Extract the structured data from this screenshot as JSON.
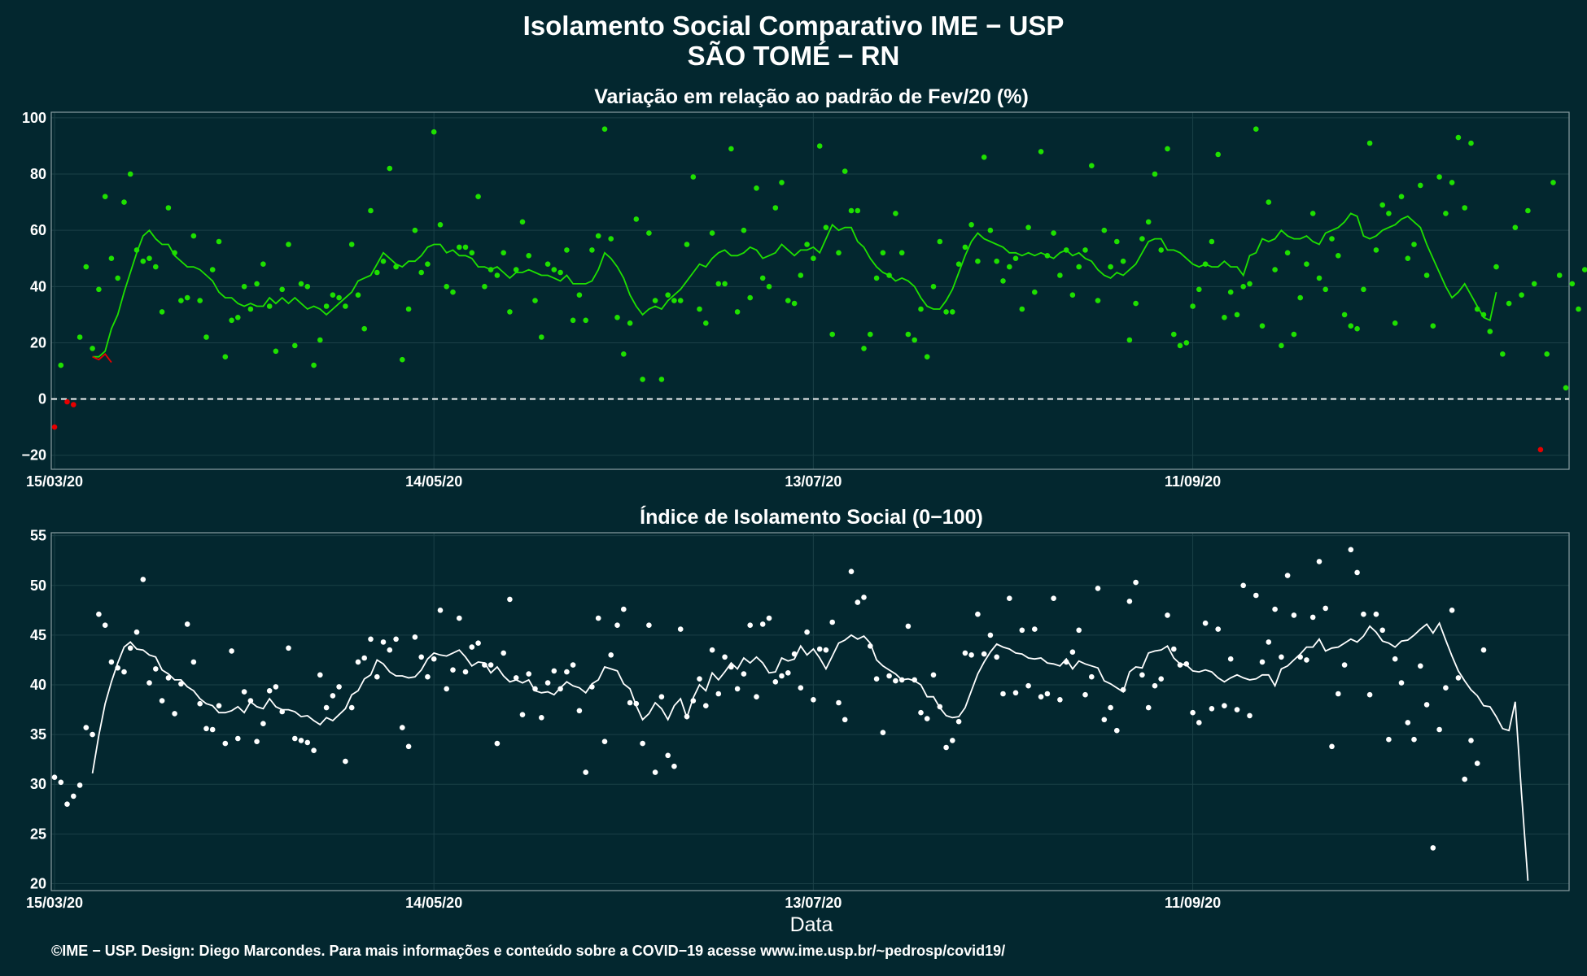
{
  "title_line1": "Isolamento Social Comparativo IME − USP",
  "title_line2": "SÃO TOMÉ − RN",
  "caption": "©IME − USP. Design: Diego Marcondes. Para mais informações e conteúdo sobre a COVID−19 acesse www.ime.usp.br/~pedrosp/covid19/",
  "colors": {
    "background": "#03272f",
    "variation_points": "#1ee000",
    "variation_negative": "#e60000",
    "index_points": "#ffffff",
    "zero_line": "#ffffff"
  },
  "chart_data": [
    {
      "type": "scatter",
      "title": "Variação em relação ao padrão de Fev/20 (%)",
      "xlabel": "",
      "ylabel": "",
      "x_ticks": [
        "15/03/20",
        "14/05/20",
        "13/07/20",
        "11/09/20"
      ],
      "x_range_days": [
        0,
        239
      ],
      "x_tick_days": [
        0,
        60,
        120,
        180
      ],
      "y_ticks": [
        -20,
        0,
        20,
        40,
        60,
        80,
        100
      ],
      "ylim": [
        -25,
        102
      ],
      "reference_line": 0,
      "grid": true,
      "series": [
        {
          "values": [
            -10,
            12,
            -1,
            -2,
            22,
            47,
            18,
            39,
            72,
            50,
            43,
            70,
            80,
            53,
            49,
            50,
            47,
            31,
            68,
            52,
            35,
            36,
            58,
            35,
            22,
            46,
            56,
            15,
            28,
            29,
            40,
            32,
            41,
            48,
            33,
            17,
            39,
            55,
            19,
            41,
            40,
            12,
            21,
            33,
            37,
            36,
            33,
            55,
            37,
            25,
            67,
            45,
            49,
            82,
            47,
            14,
            32,
            60,
            45,
            48,
            95,
            62,
            40,
            38,
            54,
            54,
            52,
            72,
            40,
            46,
            44,
            52,
            31,
            46,
            63,
            51,
            35,
            22,
            48,
            46,
            45,
            53,
            28,
            37,
            28,
            53,
            58,
            96,
            57,
            29,
            16,
            27,
            64,
            7,
            59,
            35,
            7,
            37,
            35,
            35,
            55,
            79,
            32,
            27,
            59,
            41,
            41,
            89,
            31,
            60,
            36,
            75,
            43,
            40,
            68,
            77,
            35,
            34,
            44,
            55,
            50,
            90,
            61,
            23,
            52,
            81,
            67,
            67,
            18,
            23,
            43,
            52,
            44,
            66,
            52,
            23,
            21,
            32,
            15,
            40,
            56,
            31,
            31,
            48,
            54,
            62,
            49,
            86,
            60,
            49,
            42,
            47,
            50,
            32,
            61,
            38,
            88,
            51,
            59,
            44,
            53,
            37,
            47,
            53,
            83,
            35,
            60,
            47,
            56,
            49,
            21,
            34,
            57,
            63,
            80,
            53,
            89,
            23,
            19,
            20,
            33,
            39,
            48,
            56,
            87,
            29,
            38,
            30,
            40,
            41,
            96,
            26,
            70,
            46,
            19,
            52,
            23,
            36,
            48,
            66,
            43,
            39,
            57,
            51,
            30,
            26,
            25,
            39,
            91,
            53,
            69,
            66,
            27,
            72,
            50,
            55,
            76,
            44,
            26,
            79,
            66,
            77,
            93,
            68,
            91,
            32,
            30,
            24,
            47,
            16,
            34,
            61,
            37,
            67,
            41,
            -18,
            16,
            77,
            44,
            4,
            41,
            32,
            46
          ]
        }
      ],
      "moving_average": [
        null,
        null,
        null,
        null,
        null,
        null,
        15,
        15,
        17,
        25,
        30,
        38,
        45,
        52,
        58,
        60,
        57,
        55,
        55,
        51,
        49,
        47,
        47,
        46,
        44,
        42,
        38,
        36,
        36,
        34,
        33,
        34,
        33,
        33,
        36,
        34,
        36,
        34,
        36,
        34,
        32,
        33,
        32,
        30,
        32,
        34,
        36,
        38,
        42,
        43,
        44,
        48,
        52,
        50,
        48,
        47,
        49,
        49,
        51,
        54,
        55,
        55,
        52,
        53,
        51,
        51,
        50,
        47,
        47,
        46,
        47,
        45,
        43,
        45,
        45,
        46,
        45,
        44,
        44,
        43,
        42,
        44,
        41,
        41,
        41,
        42,
        46,
        52,
        50,
        47,
        43,
        37,
        33,
        30,
        32,
        33,
        32,
        35,
        37,
        39,
        42,
        45,
        48,
        47,
        50,
        52,
        53,
        51,
        51,
        52,
        54,
        53,
        50,
        51,
        52,
        55,
        53,
        51,
        53,
        53,
        54,
        52,
        57,
        62,
        60,
        61,
        61,
        56,
        54,
        50,
        47,
        45,
        44,
        42,
        43,
        42,
        40,
        36,
        33,
        32,
        32,
        35,
        39,
        45,
        51,
        56,
        59,
        57,
        56,
        55,
        54,
        52,
        52,
        51,
        52,
        51,
        52,
        51,
        50,
        52,
        53,
        51,
        52,
        50,
        49,
        46,
        44,
        43,
        45,
        44,
        46,
        48,
        52,
        56,
        57,
        57,
        53,
        53,
        52,
        50,
        48,
        47,
        48,
        47,
        47,
        49,
        47,
        47,
        44,
        51,
        52,
        57,
        56,
        57,
        60,
        58,
        57,
        57,
        58,
        56,
        55,
        59,
        60,
        61,
        63,
        66,
        65,
        58,
        57,
        58,
        60,
        61,
        62,
        64,
        65,
        63,
        61,
        55,
        50,
        45,
        40,
        36,
        38,
        41,
        37,
        33,
        29,
        28,
        38
      ]
    },
    {
      "type": "scatter",
      "title": "Índice de Isolamento Social (0−100)",
      "xlabel": "Data",
      "ylabel": "",
      "x_ticks": [
        "15/03/20",
        "14/05/20",
        "13/07/20",
        "11/09/20"
      ],
      "x_range_days": [
        0,
        239
      ],
      "x_tick_days": [
        0,
        60,
        120,
        180
      ],
      "y_ticks": [
        20,
        25,
        30,
        35,
        40,
        45,
        50,
        55
      ],
      "ylim": [
        19.3,
        55.3
      ],
      "grid": true,
      "series": [
        {
          "values": [
            30.7,
            30.2,
            28.0,
            28.8,
            29.9,
            35.7,
            35.0,
            47.1,
            46.0,
            42.3,
            41.7,
            41.3,
            43.7,
            45.3,
            50.6,
            40.2,
            41.6,
            38.4,
            40.7,
            37.1,
            40.1,
            46.1,
            42.3,
            38.1,
            35.6,
            35.5,
            37.9,
            34.1,
            43.4,
            34.6,
            39.3,
            38.4,
            34.3,
            36.1,
            39.4,
            39.8,
            37.3,
            43.7,
            34.6,
            34.4,
            34.2,
            33.4,
            41.0,
            37.7,
            38.9,
            39.8,
            32.3,
            37.7,
            42.3,
            42.7,
            44.6,
            40.8,
            44.3,
            43.5,
            44.6,
            35.7,
            33.8,
            44.8,
            42.8,
            40.8,
            42.6,
            47.5,
            39.6,
            41.5,
            46.7,
            41.3,
            43.8,
            44.2,
            42.0,
            42.0,
            34.1,
            43.2,
            48.6,
            40.7,
            37.0,
            41.1,
            39.6,
            36.7,
            40.2,
            41.4,
            39.6,
            41.3,
            42.0,
            37.4,
            31.2,
            39.8,
            46.7,
            34.3,
            43.0,
            46.0,
            47.6,
            38.2,
            38.1,
            34.1,
            46.0,
            31.2,
            38.8,
            32.9,
            31.8,
            45.6,
            36.8,
            38.4,
            40.6,
            37.9,
            43.5,
            39.1,
            42.8,
            41.8,
            39.6,
            41.1,
            46.0,
            38.8,
            46.1,
            46.7,
            40.3,
            40.9,
            41.2,
            43.1,
            39.7,
            45.3,
            38.5,
            43.6,
            43.5,
            46.3,
            38.2,
            36.5,
            51.4,
            48.3,
            48.8,
            43.9,
            40.6,
            35.2,
            40.9,
            40.4,
            40.5,
            45.9,
            40.5,
            37.2,
            36.6,
            41.0,
            37.8,
            33.7,
            34.4,
            36.3,
            43.2,
            43.0,
            47.1,
            43.1,
            45.0,
            42.8,
            39.1,
            48.7,
            39.2,
            45.5,
            39.9,
            45.6,
            38.8,
            39.1,
            48.7,
            38.5,
            42.3,
            43.3,
            45.5,
            39.0,
            40.8,
            49.7,
            36.5,
            37.7,
            35.4,
            39.5,
            48.4,
            50.3,
            41.0,
            37.7,
            39.9,
            40.6,
            47.0,
            43.6,
            42.0,
            42.1,
            37.2,
            36.2,
            46.2,
            37.6,
            45.6,
            37.9,
            42.6,
            37.5,
            50.0,
            36.9,
            49.0,
            42.3,
            44.3,
            47.6,
            42.8,
            51.0,
            47.0,
            42.8,
            42.5,
            46.8,
            52.4,
            47.7,
            33.8,
            39.1,
            42.0,
            53.6,
            51.3,
            47.1,
            39.0,
            47.1,
            45.5,
            34.5,
            42.6,
            40.2,
            36.2,
            34.5,
            41.9,
            38.0,
            23.6,
            35.5,
            39.7,
            47.5,
            40.7,
            30.5,
            34.4,
            32.1,
            43.5
          ]
        }
      ],
      "moving_average": [
        null,
        null,
        null,
        null,
        null,
        null,
        31.1,
        34.9,
        38.1,
        40.3,
        42.2,
        43.8,
        44.3,
        43.6,
        43.5,
        43.0,
        42.8,
        41.5,
        41.1,
        40.5,
        40.5,
        39.8,
        39.4,
        38.6,
        38.1,
        37.9,
        37.2,
        37.2,
        37.4,
        37.8,
        37.2,
        38.3,
        37.8,
        37.6,
        38.6,
        37.8,
        37.5,
        37.5,
        37.3,
        36.8,
        36.9,
        36.4,
        36.0,
        36.7,
        36.4,
        37.0,
        37.6,
        39.0,
        39.4,
        40.6,
        41.0,
        42.5,
        42.1,
        41.3,
        40.9,
        40.9,
        40.7,
        40.8,
        41.5,
        42.6,
        43.2,
        43.0,
        42.9,
        43.2,
        43.5,
        42.8,
        41.9,
        42.3,
        42.2,
        41.2,
        41.8,
        40.9,
        40.3,
        40.5,
        40.2,
        40.5,
        39.4,
        39.2,
        39.3,
        39.0,
        39.7,
        40.3,
        39.9,
        39.7,
        39.2,
        40.1,
        40.5,
        41.8,
        41.6,
        41.4,
        40.1,
        39.6,
        37.9,
        36.5,
        37.1,
        38.2,
        37.6,
        36.5,
        37.9,
        38.6,
        36.7,
        38.7,
        40.0,
        39.4,
        41.2,
        40.5,
        41.3,
        42.2,
        41.6,
        42.7,
        42.2,
        42.8,
        42.2,
        41.2,
        41.3,
        42.7,
        42.4,
        42.6,
        43.9,
        43.0,
        43.6,
        42.7,
        41.6,
        42.9,
        44.2,
        44.5,
        45.0,
        44.6,
        44.9,
        44.2,
        42.5,
        41.9,
        41.5,
        41.1,
        40.5,
        40.6,
        40.4,
        40.0,
        38.8,
        38.8,
        37.7,
        36.9,
        36.7,
        36.8,
        37.7,
        39.4,
        41.1,
        42.3,
        43.3,
        44.1,
        43.8,
        43.6,
        43.2,
        43.1,
        42.7,
        42.6,
        42.7,
        42.2,
        42.1,
        41.9,
        42.6,
        41.6,
        42.4,
        42.1,
        41.9,
        41.7,
        40.4,
        40.1,
        39.7,
        39.3,
        41.3,
        41.8,
        41.7,
        43.2,
        43.4,
        43.5,
        43.9,
        42.7,
        42.1,
        42.0,
        41.4,
        41.3,
        41.5,
        41.3,
        40.7,
        40.3,
        40.7,
        41.0,
        40.7,
        40.5,
        40.6,
        41.0,
        41.0,
        39.9,
        41.6,
        41.9,
        42.5,
        43.1,
        43.8,
        43.8,
        44.6,
        43.4,
        43.7,
        43.8,
        44.2,
        44.6,
        44.3,
        44.9,
        45.9,
        45.3,
        44.4,
        44.2,
        43.8,
        44.4,
        44.5,
        45.0,
        45.6,
        46.1,
        45.2,
        46.2,
        44.5,
        42.9,
        41.4,
        40.4,
        39.5,
        38.9,
        37.9,
        37.8,
        36.8,
        35.6,
        35.4,
        38.3,
        29.0,
        20.3
      ]
    }
  ]
}
